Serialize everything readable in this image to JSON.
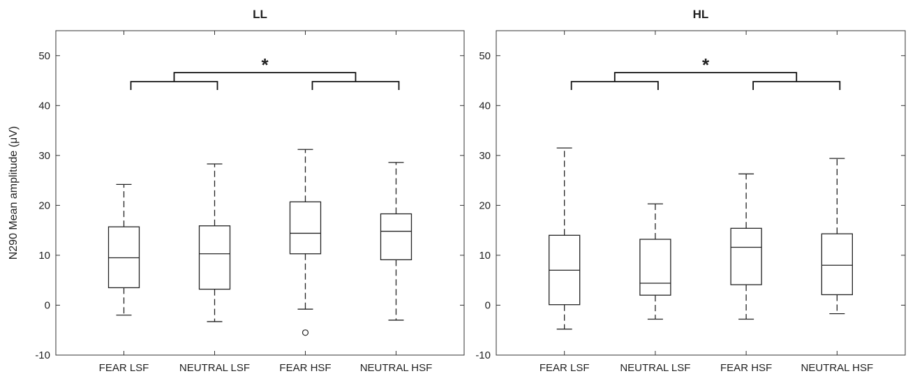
{
  "chart_data": [
    {
      "type": "box",
      "title": "LL",
      "ylabel": "N290 Mean amplitude (μV)",
      "ylim": [
        -10,
        55
      ],
      "yticks": [
        -10,
        0,
        10,
        20,
        30,
        40,
        50
      ],
      "categories": [
        "FEAR LSF",
        "NEUTRAL LSF",
        "FEAR HSF",
        "NEUTRAL HSF"
      ],
      "boxes": [
        {
          "whisker_low": -2.0,
          "q1": 3.5,
          "median": 9.5,
          "q3": 15.7,
          "whisker_high": 24.2,
          "outliers": []
        },
        {
          "whisker_low": -3.3,
          "q1": 3.2,
          "median": 10.3,
          "q3": 15.9,
          "whisker_high": 28.3,
          "outliers": []
        },
        {
          "whisker_low": -0.8,
          "q1": 10.3,
          "median": 14.4,
          "q3": 20.7,
          "whisker_high": 31.2,
          "outliers": [
            -5.5
          ]
        },
        {
          "whisker_low": -3.0,
          "q1": 9.1,
          "median": 14.8,
          "q3": 18.3,
          "whisker_high": 28.6,
          "outliers": []
        }
      ],
      "significance": {
        "label": "*",
        "groups": [
          [
            0,
            1
          ],
          [
            2,
            3
          ]
        ]
      }
    },
    {
      "type": "box",
      "title": "HL",
      "ylabel": "",
      "ylim": [
        -10,
        55
      ],
      "yticks": [
        -10,
        0,
        10,
        20,
        30,
        40,
        50
      ],
      "categories": [
        "FEAR LSF",
        "NEUTRAL LSF",
        "FEAR HSF",
        "NEUTRAL HSF"
      ],
      "boxes": [
        {
          "whisker_low": -4.8,
          "q1": 0.1,
          "median": 7.0,
          "q3": 14.0,
          "whisker_high": 31.5,
          "outliers": []
        },
        {
          "whisker_low": -2.8,
          "q1": 2.0,
          "median": 4.4,
          "q3": 13.2,
          "whisker_high": 20.3,
          "outliers": []
        },
        {
          "whisker_low": -2.8,
          "q1": 4.1,
          "median": 11.6,
          "q3": 15.4,
          "whisker_high": 26.3,
          "outliers": []
        },
        {
          "whisker_low": -1.7,
          "q1": 2.1,
          "median": 8.0,
          "q3": 14.3,
          "whisker_high": 29.4,
          "outliers": []
        }
      ],
      "significance": {
        "label": "*",
        "groups": [
          [
            0,
            1
          ],
          [
            2,
            3
          ]
        ]
      }
    }
  ]
}
